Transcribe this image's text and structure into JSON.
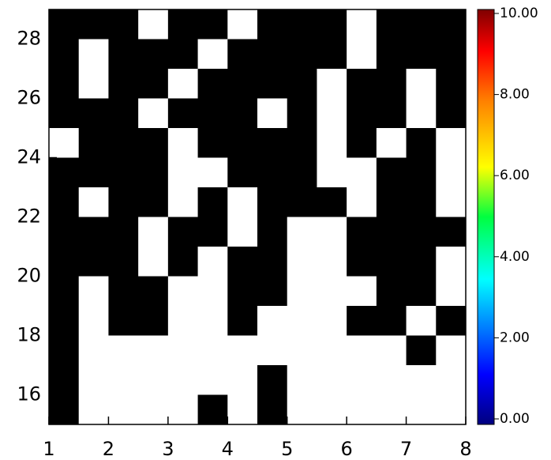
{
  "chart_data": {
    "type": "heatmap",
    "xlim": [
      1,
      8
    ],
    "xticks": [
      1,
      2,
      3,
      4,
      5,
      6,
      7,
      8
    ],
    "ylim": [
      15,
      29
    ],
    "yticks": [
      16,
      18,
      20,
      22,
      24,
      26,
      28
    ],
    "cell_colors": [
      "#ffffff",
      "#000000"
    ],
    "z": [
      [
        1,
        1,
        1,
        0,
        1,
        1,
        0,
        1,
        1,
        1,
        0,
        1,
        1,
        1
      ],
      [
        1,
        0,
        1,
        1,
        1,
        0,
        1,
        1,
        1,
        1,
        0,
        1,
        1,
        1
      ],
      [
        1,
        0,
        1,
        1,
        0,
        1,
        1,
        1,
        1,
        0,
        1,
        1,
        0,
        1
      ],
      [
        1,
        1,
        1,
        0,
        1,
        1,
        1,
        0,
        1,
        0,
        1,
        1,
        0,
        1
      ],
      [
        0,
        1,
        1,
        1,
        0,
        1,
        1,
        1,
        1,
        0,
        1,
        0,
        1,
        0
      ],
      [
        1,
        1,
        1,
        1,
        0,
        0,
        1,
        1,
        1,
        0,
        0,
        1,
        1,
        0
      ],
      [
        1,
        0,
        1,
        1,
        0,
        1,
        0,
        1,
        1,
        1,
        0,
        1,
        1,
        0
      ],
      [
        1,
        1,
        1,
        0,
        1,
        1,
        0,
        1,
        0,
        0,
        1,
        1,
        1,
        1
      ],
      [
        1,
        1,
        1,
        0,
        1,
        0,
        1,
        1,
        0,
        0,
        1,
        1,
        1,
        0
      ],
      [
        1,
        0,
        1,
        1,
        0,
        0,
        1,
        1,
        0,
        0,
        0,
        1,
        1,
        0
      ],
      [
        1,
        0,
        1,
        1,
        0,
        0,
        1,
        0,
        0,
        0,
        1,
        1,
        0,
        1
      ],
      [
        1,
        0,
        0,
        0,
        0,
        0,
        0,
        0,
        0,
        0,
        0,
        0,
        1,
        0
      ],
      [
        1,
        0,
        0,
        0,
        0,
        0,
        0,
        1,
        0,
        0,
        0,
        0,
        0,
        0
      ],
      [
        1,
        0,
        0,
        0,
        0,
        1,
        0,
        1,
        0,
        0,
        0,
        0,
        0,
        0
      ]
    ],
    "clim": [
      0,
      10
    ],
    "cticks": [
      {
        "value": 0,
        "label": "0.00"
      },
      {
        "value": 2,
        "label": "2.00"
      },
      {
        "value": 4,
        "label": "4.00"
      },
      {
        "value": 6,
        "label": "6.00"
      },
      {
        "value": 8,
        "label": "8.00"
      },
      {
        "value": 10,
        "label": "10.00"
      }
    ]
  }
}
